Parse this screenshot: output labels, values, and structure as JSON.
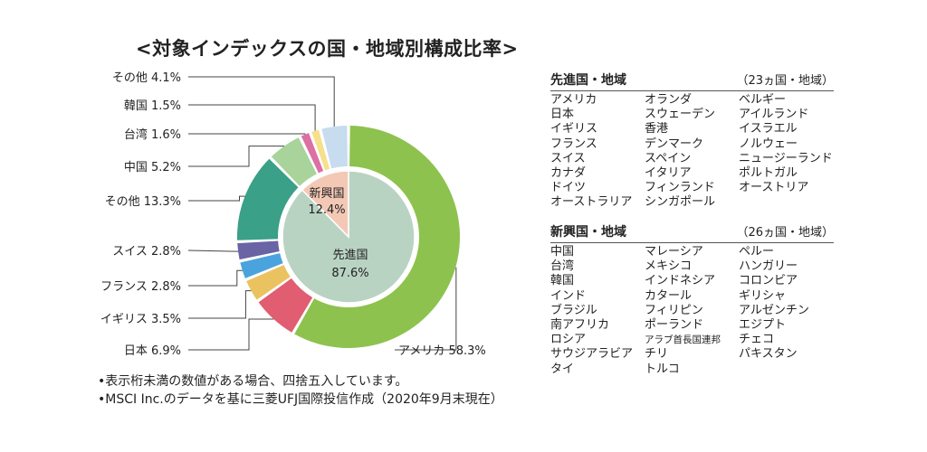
{
  "chart_data": {
    "type": "pie",
    "title": "<対象インデックスの国・地域別構成比率>",
    "inner": [
      {
        "label": "先進国",
        "value": 87.6,
        "display": "87.6%",
        "color": "#b9d3c3"
      },
      {
        "label": "新興国",
        "value": 12.4,
        "display": "12.4%",
        "color": "#f3c9b6"
      }
    ],
    "outer": [
      {
        "label": "アメリカ",
        "value": 58.3,
        "color": "#8ec24e"
      },
      {
        "label": "日本",
        "value": 6.9,
        "color": "#e15d71"
      },
      {
        "label": "イギリス",
        "value": 3.5,
        "color": "#eac260"
      },
      {
        "label": "フランス",
        "value": 2.8,
        "color": "#4aa3dc"
      },
      {
        "label": "スイス",
        "value": 2.8,
        "color": "#6a63a4"
      },
      {
        "label": "その他",
        "value": 13.3,
        "color": "#3aa088"
      },
      {
        "label": "中国",
        "value": 5.2,
        "color": "#a8d39b"
      },
      {
        "label": "台湾",
        "value": 1.6,
        "color": "#dc6fa3"
      },
      {
        "label": "韓国",
        "value": 1.5,
        "color": "#f6e08d"
      },
      {
        "label": "その他",
        "value": 4.1,
        "color": "#c7dcee"
      }
    ],
    "outer_labels": [
      "アメリカ 58.3%",
      "日本 6.9%",
      "イギリス 3.5%",
      "フランス 2.8%",
      "スイス 2.8%",
      "その他 13.3%",
      "中国 5.2%",
      "台湾 1.6%",
      "韓国 1.5%",
      "その他 4.1%"
    ]
  },
  "developed": {
    "title": "先進国・地域",
    "count": "（23ヵ国・地域）",
    "col1": [
      "アメリカ",
      "日本",
      "イギリス",
      "フランス",
      "スイス",
      "カナダ",
      "ドイツ",
      "オーストラリア"
    ],
    "col2": [
      "オランダ",
      "スウェーデン",
      "香港",
      "デンマーク",
      "スペイン",
      "イタリア",
      "フィンランド",
      "シンガポール"
    ],
    "col3": [
      "ベルギー",
      "アイルランド",
      "イスラエル",
      "ノルウェー",
      "ニュージーランド",
      "ポルトガル",
      "オーストリア"
    ]
  },
  "emerging": {
    "title": "新興国・地域",
    "count": "（26ヵ国・地域）",
    "col1": [
      "中国",
      "台湾",
      "韓国",
      "インド",
      "ブラジル",
      "南アフリカ",
      "ロシア",
      "サウジアラビア",
      "タイ"
    ],
    "col2": [
      "マレーシア",
      "メキシコ",
      "インドネシア",
      "カタール",
      "フィリピン",
      "ポーランド",
      "アラブ首長国連邦",
      "チリ",
      "トルコ"
    ],
    "col3": [
      "ペルー",
      "ハンガリー",
      "コロンビア",
      "ギリシャ",
      "アルゼンチン",
      "エジプト",
      "チェコ",
      "パキスタン"
    ]
  },
  "notes": [
    "•表示桁未満の数値がある場合、四捨五入しています。",
    "•MSCI Inc.のデータを基に三菱UFJ国際投信作成（2020年9月末現在）"
  ]
}
